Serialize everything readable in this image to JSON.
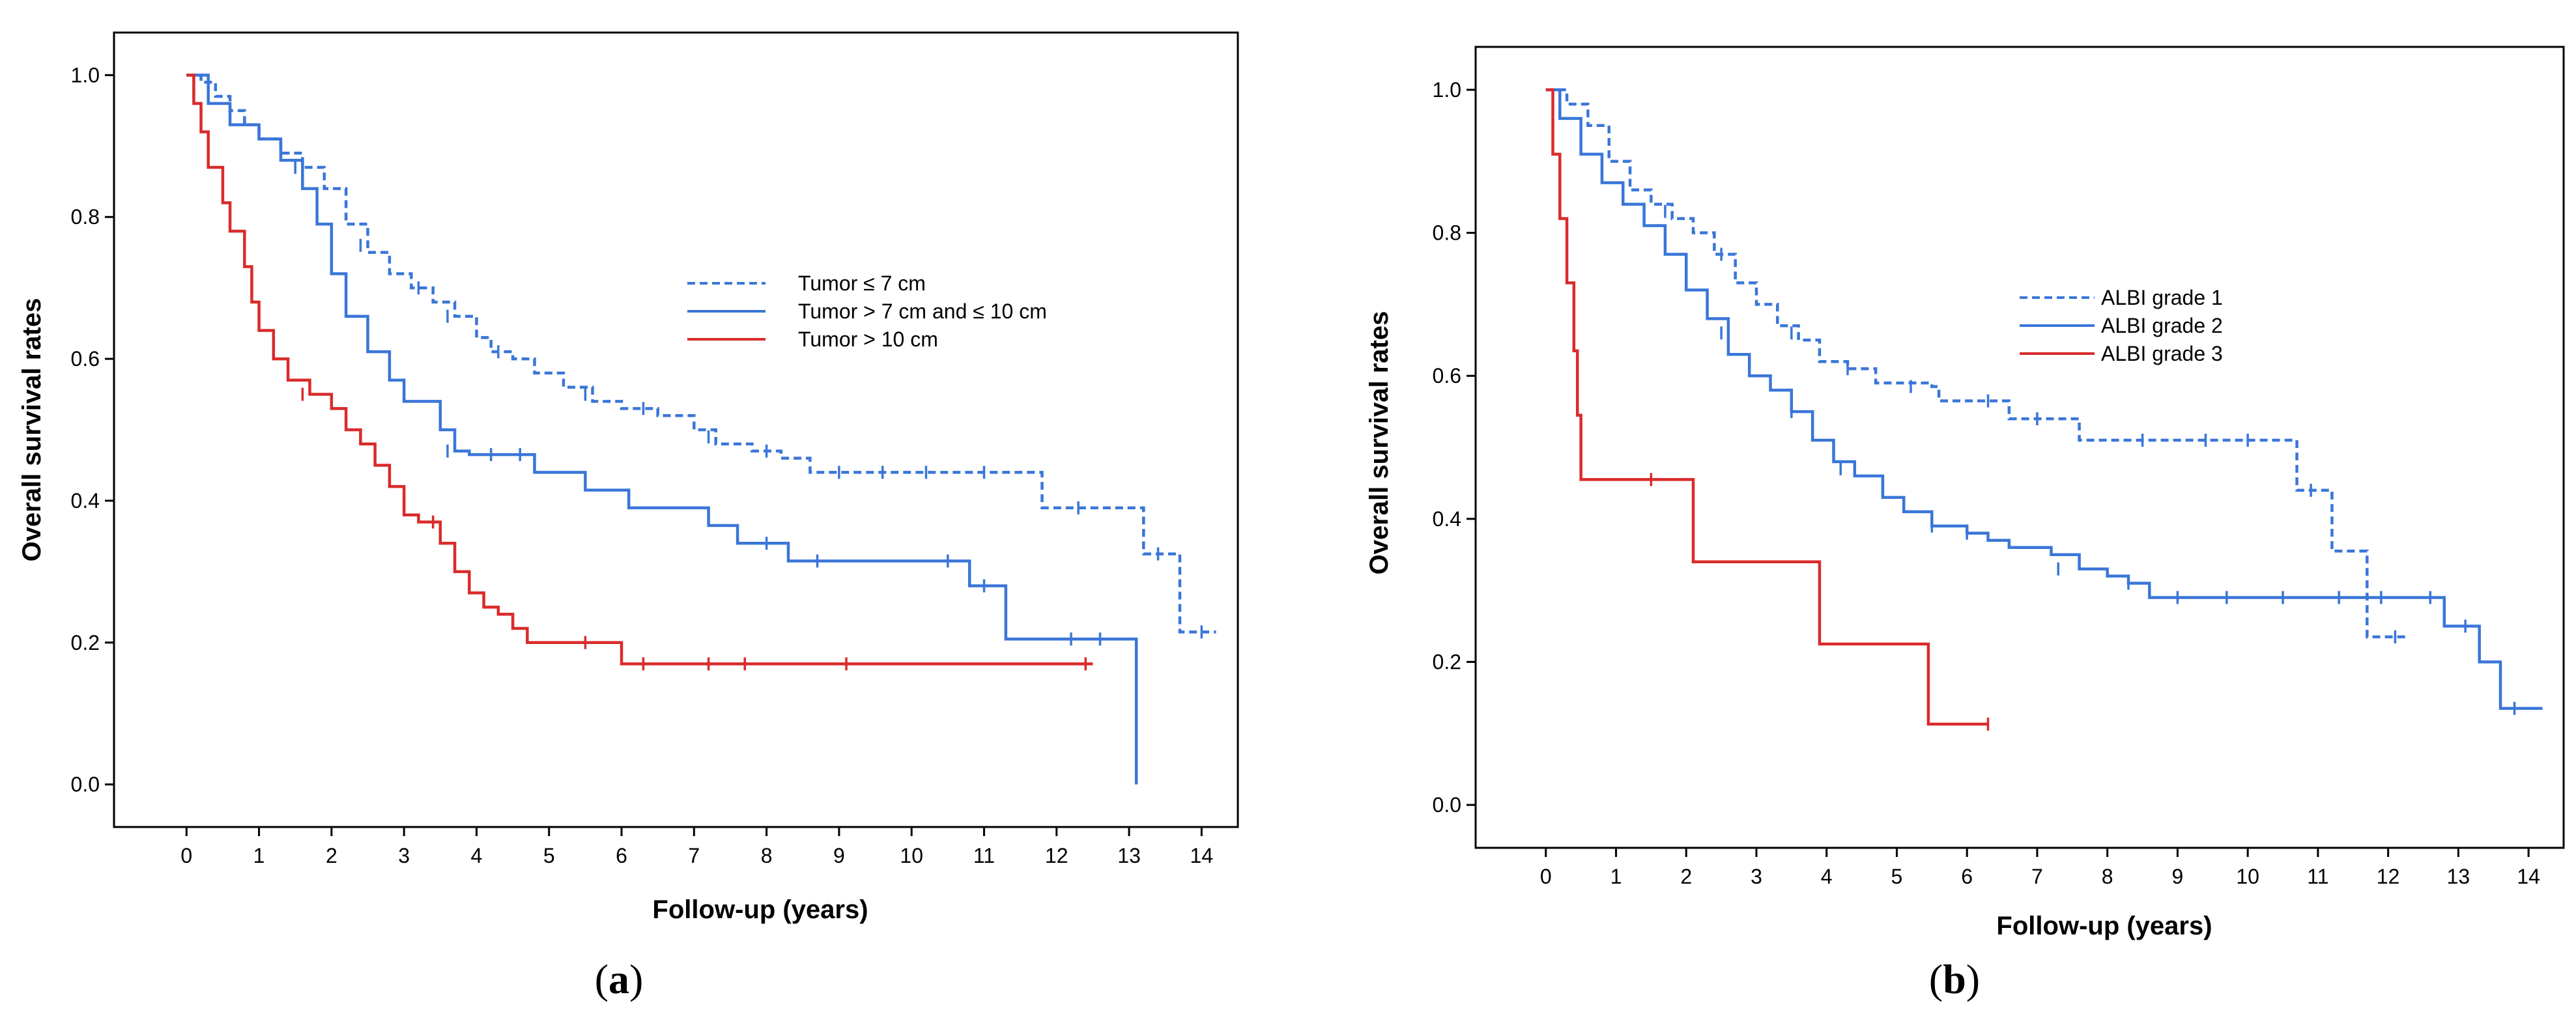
{
  "chart_data": [
    {
      "type": "line",
      "panel_label": "a",
      "xlabel": "Follow-up (years)",
      "ylabel": "Overall survival rates",
      "xlim": [
        -1,
        14.5
      ],
      "ylim": [
        -0.06,
        1.06
      ],
      "xticks": [
        0,
        1,
        2,
        3,
        4,
        5,
        6,
        7,
        8,
        9,
        10,
        11,
        12,
        13,
        14
      ],
      "yticks": [
        "0.0",
        "0.2",
        "0.4",
        "0.6",
        "0.8",
        "1.0"
      ],
      "grid": false,
      "legend_position": "center-right",
      "series": [
        {
          "name": "Tumor ≤ 7 cm",
          "color": "#3a76d8",
          "dash": "dashed",
          "points": [
            [
              0,
              1.0
            ],
            [
              0.2,
              0.99
            ],
            [
              0.4,
              0.97
            ],
            [
              0.6,
              0.95
            ],
            [
              0.8,
              0.93
            ],
            [
              1.0,
              0.91
            ],
            [
              1.3,
              0.89
            ],
            [
              1.6,
              0.87
            ],
            [
              1.9,
              0.84
            ],
            [
              2.2,
              0.79
            ],
            [
              2.5,
              0.75
            ],
            [
              2.8,
              0.72
            ],
            [
              3.1,
              0.7
            ],
            [
              3.4,
              0.68
            ],
            [
              3.7,
              0.66
            ],
            [
              4.0,
              0.63
            ],
            [
              4.2,
              0.61
            ],
            [
              4.5,
              0.6
            ],
            [
              4.8,
              0.58
            ],
            [
              5.2,
              0.56
            ],
            [
              5.6,
              0.54
            ],
            [
              6.0,
              0.53
            ],
            [
              6.5,
              0.52
            ],
            [
              7.0,
              0.5
            ],
            [
              7.3,
              0.48
            ],
            [
              7.8,
              0.47
            ],
            [
              8.2,
              0.46
            ],
            [
              8.6,
              0.44
            ],
            [
              9.5,
              0.44
            ],
            [
              10.5,
              0.44
            ],
            [
              11.7,
              0.44
            ],
            [
              11.8,
              0.39
            ],
            [
              12.8,
              0.39
            ],
            [
              13.2,
              0.325
            ],
            [
              13.6,
              0.325
            ],
            [
              13.7,
              0.215
            ],
            [
              14.2,
              0.215
            ]
          ],
          "censored": [
            [
              1.5,
              0.87
            ],
            [
              2.4,
              0.76
            ],
            [
              3.2,
              0.7
            ],
            [
              3.6,
              0.66
            ],
            [
              4.3,
              0.61
            ],
            [
              5.5,
              0.55
            ],
            [
              6.3,
              0.53
            ],
            [
              7.2,
              0.49
            ],
            [
              8.0,
              0.47
            ],
            [
              9.0,
              0.44
            ],
            [
              9.6,
              0.44
            ],
            [
              10.2,
              0.44
            ],
            [
              11.0,
              0.44
            ],
            [
              12.3,
              0.39
            ],
            [
              13.4,
              0.325
            ],
            [
              14.0,
              0.215
            ]
          ]
        },
        {
          "name": "Tumor > 7 cm and ≤ 10 cm",
          "color": "#3a76d8",
          "dash": "solid",
          "points": [
            [
              0,
              1.0
            ],
            [
              0.3,
              0.96
            ],
            [
              0.6,
              0.93
            ],
            [
              1.0,
              0.91
            ],
            [
              1.3,
              0.88
            ],
            [
              1.6,
              0.84
            ],
            [
              1.8,
              0.79
            ],
            [
              2.0,
              0.72
            ],
            [
              2.2,
              0.66
            ],
            [
              2.5,
              0.61
            ],
            [
              2.8,
              0.57
            ],
            [
              3.0,
              0.54
            ],
            [
              3.3,
              0.54
            ],
            [
              3.5,
              0.5
            ],
            [
              3.7,
              0.47
            ],
            [
              3.9,
              0.465
            ],
            [
              4.6,
              0.465
            ],
            [
              4.8,
              0.44
            ],
            [
              5.4,
              0.44
            ],
            [
              5.5,
              0.415
            ],
            [
              6.0,
              0.415
            ],
            [
              6.1,
              0.39
            ],
            [
              7.1,
              0.39
            ],
            [
              7.2,
              0.365
            ],
            [
              7.5,
              0.365
            ],
            [
              7.6,
              0.34
            ],
            [
              8.2,
              0.34
            ],
            [
              8.3,
              0.315
            ],
            [
              10.7,
              0.315
            ],
            [
              10.8,
              0.28
            ],
            [
              11.2,
              0.28
            ],
            [
              11.3,
              0.205
            ],
            [
              13.1,
              0.205
            ],
            [
              13.1,
              0.0
            ]
          ],
          "censored": [
            [
              1.5,
              0.87
            ],
            [
              3.6,
              0.47
            ],
            [
              4.2,
              0.465
            ],
            [
              4.6,
              0.465
            ],
            [
              8.0,
              0.34
            ],
            [
              8.7,
              0.315
            ],
            [
              10.5,
              0.315
            ],
            [
              11.0,
              0.28
            ],
            [
              12.2,
              0.205
            ],
            [
              12.6,
              0.205
            ]
          ]
        },
        {
          "name": "Tumor > 10 cm",
          "color": "#d92b2b",
          "dash": "solid",
          "points": [
            [
              0,
              1.0
            ],
            [
              0.1,
              0.96
            ],
            [
              0.2,
              0.92
            ],
            [
              0.3,
              0.87
            ],
            [
              0.5,
              0.82
            ],
            [
              0.6,
              0.78
            ],
            [
              0.8,
              0.73
            ],
            [
              0.9,
              0.68
            ],
            [
              1.0,
              0.64
            ],
            [
              1.2,
              0.6
            ],
            [
              1.4,
              0.57
            ],
            [
              1.7,
              0.55
            ],
            [
              2.0,
              0.53
            ],
            [
              2.2,
              0.5
            ],
            [
              2.4,
              0.48
            ],
            [
              2.6,
              0.45
            ],
            [
              2.8,
              0.42
            ],
            [
              3.0,
              0.38
            ],
            [
              3.2,
              0.37
            ],
            [
              3.5,
              0.34
            ],
            [
              3.7,
              0.3
            ],
            [
              3.9,
              0.27
            ],
            [
              4.1,
              0.25
            ],
            [
              4.3,
              0.24
            ],
            [
              4.5,
              0.22
            ],
            [
              4.7,
              0.2
            ],
            [
              5.7,
              0.2
            ],
            [
              6.0,
              0.17
            ],
            [
              12.5,
              0.17
            ]
          ],
          "censored": [
            [
              1.6,
              0.55
            ],
            [
              3.4,
              0.37
            ],
            [
              5.5,
              0.2
            ],
            [
              6.3,
              0.17
            ],
            [
              7.2,
              0.17
            ],
            [
              7.7,
              0.17
            ],
            [
              9.1,
              0.17
            ],
            [
              12.4,
              0.17
            ]
          ]
        }
      ]
    },
    {
      "type": "line",
      "panel_label": "b",
      "xlabel": "Follow-up (years)",
      "ylabel": "Overall survival rates",
      "xlim": [
        -1,
        14.5
      ],
      "ylim": [
        -0.06,
        1.06
      ],
      "xticks": [
        0,
        1,
        2,
        3,
        4,
        5,
        6,
        7,
        8,
        9,
        10,
        11,
        12,
        13,
        14
      ],
      "yticks": [
        "0.0",
        "0.2",
        "0.4",
        "0.6",
        "0.8",
        "1.0"
      ],
      "grid": false,
      "legend_position": "center-right",
      "series": [
        {
          "name": "ALBI grade 1",
          "color": "#3a76d8",
          "dash": "dashed",
          "points": [
            [
              0,
              1.0
            ],
            [
              0.3,
              0.98
            ],
            [
              0.6,
              0.95
            ],
            [
              0.9,
              0.9
            ],
            [
              1.2,
              0.86
            ],
            [
              1.5,
              0.84
            ],
            [
              1.8,
              0.82
            ],
            [
              2.1,
              0.8
            ],
            [
              2.4,
              0.77
            ],
            [
              2.7,
              0.73
            ],
            [
              3.0,
              0.7
            ],
            [
              3.3,
              0.67
            ],
            [
              3.6,
              0.65
            ],
            [
              3.9,
              0.62
            ],
            [
              4.3,
              0.61
            ],
            [
              4.7,
              0.59
            ],
            [
              5.5,
              0.585
            ],
            [
              5.6,
              0.565
            ],
            [
              6.5,
              0.565
            ],
            [
              6.6,
              0.54
            ],
            [
              7.5,
              0.54
            ],
            [
              7.6,
              0.51
            ],
            [
              10.6,
              0.51
            ],
            [
              10.7,
              0.44
            ],
            [
              11.1,
              0.44
            ],
            [
              11.2,
              0.355
            ],
            [
              11.6,
              0.355
            ],
            [
              11.7,
              0.235
            ],
            [
              12.3,
              0.235
            ]
          ],
          "censored": [
            [
              1.7,
              0.83
            ],
            [
              2.5,
              0.77
            ],
            [
              3.5,
              0.66
            ],
            [
              4.3,
              0.61
            ],
            [
              5.2,
              0.585
            ],
            [
              6.3,
              0.565
            ],
            [
              7.0,
              0.54
            ],
            [
              8.5,
              0.51
            ],
            [
              9.4,
              0.51
            ],
            [
              10.0,
              0.51
            ],
            [
              10.9,
              0.44
            ],
            [
              12.1,
              0.235
            ]
          ]
        },
        {
          "name": "ALBI grade 2",
          "color": "#3a76d8",
          "dash": "solid",
          "points": [
            [
              0,
              1.0
            ],
            [
              0.2,
              0.96
            ],
            [
              0.5,
              0.91
            ],
            [
              0.8,
              0.87
            ],
            [
              1.1,
              0.84
            ],
            [
              1.4,
              0.81
            ],
            [
              1.7,
              0.77
            ],
            [
              2.0,
              0.72
            ],
            [
              2.3,
              0.68
            ],
            [
              2.6,
              0.63
            ],
            [
              2.9,
              0.6
            ],
            [
              3.2,
              0.58
            ],
            [
              3.5,
              0.55
            ],
            [
              3.8,
              0.51
            ],
            [
              4.1,
              0.48
            ],
            [
              4.4,
              0.46
            ],
            [
              4.8,
              0.43
            ],
            [
              5.1,
              0.41
            ],
            [
              5.5,
              0.39
            ],
            [
              6.0,
              0.38
            ],
            [
              6.3,
              0.37
            ],
            [
              6.6,
              0.36
            ],
            [
              7.2,
              0.35
            ],
            [
              7.6,
              0.33
            ],
            [
              8.0,
              0.32
            ],
            [
              8.3,
              0.31
            ],
            [
              8.6,
              0.29
            ],
            [
              12.7,
              0.29
            ],
            [
              12.8,
              0.25
            ],
            [
              13.2,
              0.25
            ],
            [
              13.3,
              0.2
            ],
            [
              13.5,
              0.2
            ],
            [
              13.6,
              0.135
            ],
            [
              14.2,
              0.135
            ]
          ],
          "censored": [
            [
              2.5,
              0.66
            ],
            [
              3.5,
              0.55
            ],
            [
              4.2,
              0.47
            ],
            [
              5.5,
              0.39
            ],
            [
              6.0,
              0.38
            ],
            [
              7.3,
              0.33
            ],
            [
              8.3,
              0.31
            ],
            [
              9.0,
              0.29
            ],
            [
              9.7,
              0.29
            ],
            [
              10.5,
              0.29
            ],
            [
              11.3,
              0.29
            ],
            [
              11.9,
              0.29
            ],
            [
              12.6,
              0.29
            ],
            [
              13.1,
              0.25
            ],
            [
              13.8,
              0.135
            ]
          ]
        },
        {
          "name": "ALBI grade 3",
          "color": "#d92b2b",
          "dash": "solid",
          "points": [
            [
              0,
              1.0
            ],
            [
              0.1,
              0.91
            ],
            [
              0.2,
              0.82
            ],
            [
              0.3,
              0.73
            ],
            [
              0.4,
              0.635
            ],
            [
              0.45,
              0.545
            ],
            [
              0.5,
              0.455
            ],
            [
              2.0,
              0.455
            ],
            [
              2.1,
              0.34
            ],
            [
              3.9,
              0.34
            ],
            [
              3.9,
              0.225
            ],
            [
              5.4,
              0.225
            ],
            [
              5.45,
              0.113
            ],
            [
              6.3,
              0.113
            ]
          ],
          "censored": [
            [
              1.5,
              0.455
            ],
            [
              6.3,
              0.113
            ]
          ]
        }
      ]
    }
  ]
}
